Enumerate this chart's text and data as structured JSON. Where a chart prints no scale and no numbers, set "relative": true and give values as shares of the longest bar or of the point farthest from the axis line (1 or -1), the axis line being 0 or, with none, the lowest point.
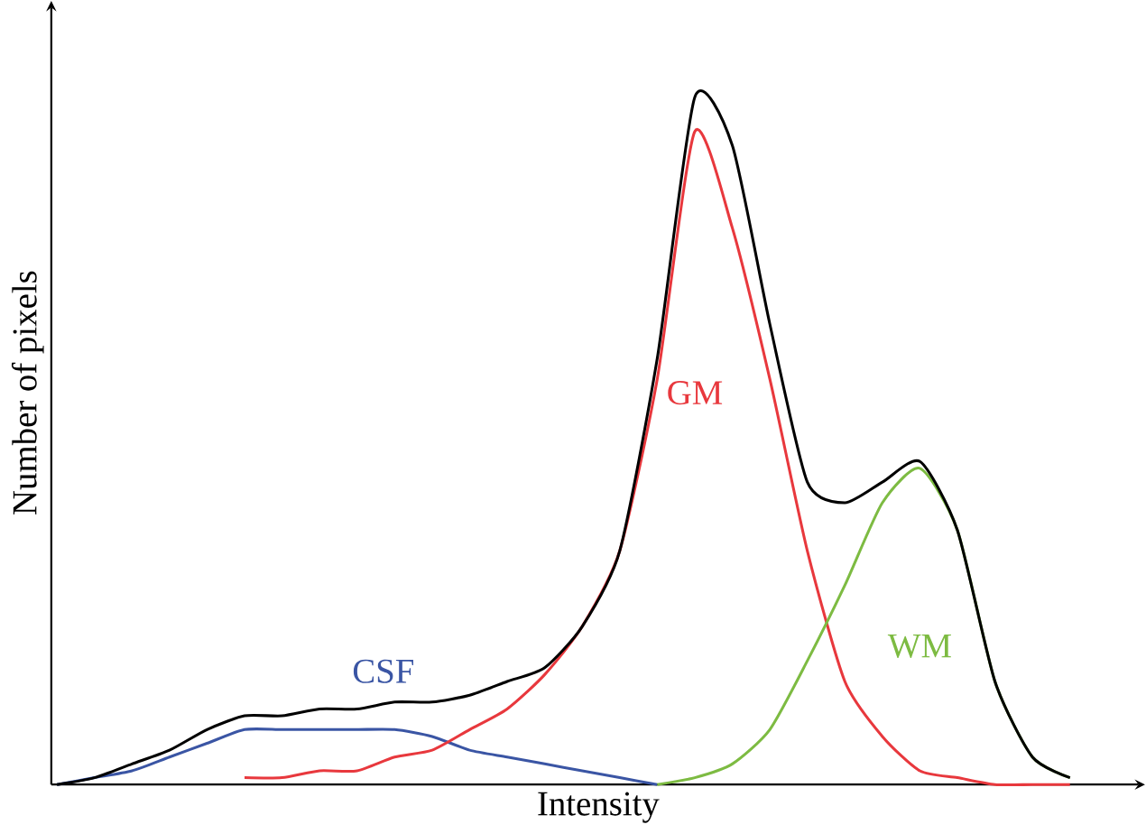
{
  "chart_data": {
    "type": "line",
    "relative": true,
    "xlabel": "Intensity",
    "ylabel": "Number of pixels",
    "categories": [
      null,
      null,
      null,
      null,
      null,
      null,
      null,
      null,
      null,
      null,
      null,
      null,
      null,
      null,
      null,
      null,
      null,
      null,
      null,
      null,
      null,
      null,
      null,
      null,
      null,
      null,
      null,
      null
    ],
    "series": [
      {
        "name": "CSF",
        "color": "#3a55a4",
        "values": [
          0,
          0.01,
          0.02,
          0.04,
          0.06,
          0.08,
          0.08,
          0.08,
          0.08,
          0.08,
          0.07,
          0.05,
          0.04,
          0.03,
          0.02,
          0.01,
          0,
          null,
          null,
          null,
          null,
          null,
          null,
          null,
          null,
          null,
          null,
          null
        ]
      },
      {
        "name": "GM",
        "color": "#e8383d",
        "values": [
          null,
          null,
          null,
          null,
          null,
          0.01,
          0.01,
          0.02,
          0.02,
          0.04,
          0.05,
          0.08,
          0.11,
          0.16,
          0.23,
          0.34,
          0.59,
          0.95,
          0.81,
          0.59,
          0.34,
          0.15,
          0.07,
          0.02,
          0.01,
          0,
          0,
          0
        ]
      },
      {
        "name": "WM",
        "color": "#7dbb42",
        "values": [
          null,
          null,
          null,
          null,
          null,
          null,
          null,
          null,
          null,
          null,
          null,
          null,
          null,
          null,
          null,
          null,
          0,
          0.01,
          0.03,
          0.08,
          0.18,
          0.29,
          0.41,
          0.46,
          0.37,
          0.15,
          0.04,
          0.01
        ]
      },
      {
        "color": "#000000",
        "values": [
          0,
          0.01,
          0.03,
          0.05,
          0.08,
          0.1,
          0.1,
          0.11,
          0.11,
          0.12,
          0.12,
          0.13,
          0.15,
          0.17,
          0.23,
          0.34,
          0.62,
          1,
          0.93,
          0.67,
          0.44,
          0.41,
          0.44,
          0.47,
          0.37,
          0.15,
          0.04,
          0.01
        ]
      }
    ]
  }
}
